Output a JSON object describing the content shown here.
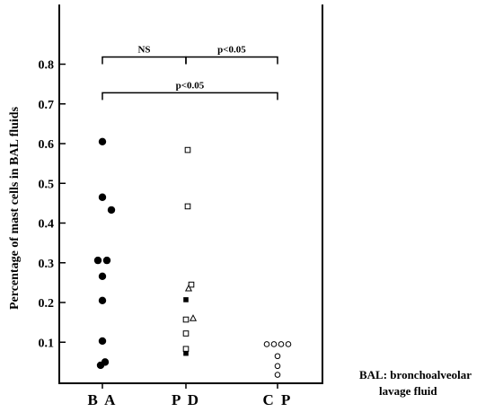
{
  "chart_data": {
    "type": "scatter",
    "ylabel": "Percentage of mast cells in BAL fluids",
    "ylim": [
      0,
      0.9
    ],
    "yticks": [
      "0.1",
      "0.2",
      "0.3",
      "0.4",
      "0.5",
      "0.6",
      "0.7",
      "0.8"
    ],
    "categories": [
      "B A",
      "P D",
      "C P"
    ],
    "series": [
      {
        "category": "B A",
        "marker": "filled-circle",
        "points": [
          {
            "offset": 0,
            "y": 0.605
          },
          {
            "offset": 0,
            "y": 0.465
          },
          {
            "offset": 1,
            "y": 0.433
          },
          {
            "offset": -0.5,
            "y": 0.306
          },
          {
            "offset": 0.5,
            "y": 0.306
          },
          {
            "offset": 0,
            "y": 0.266
          },
          {
            "offset": 0,
            "y": 0.205
          },
          {
            "offset": 0,
            "y": 0.103
          },
          {
            "offset": 0.3,
            "y": 0.05
          },
          {
            "offset": -0.2,
            "y": 0.042
          }
        ]
      },
      {
        "category": "P D",
        "marker": "open-square",
        "points": [
          {
            "offset": 0.2,
            "y": 0.584
          },
          {
            "offset": 0.2,
            "y": 0.442
          },
          {
            "offset": 0.6,
            "y": 0.245
          },
          {
            "offset": 0,
            "y": 0.157
          },
          {
            "offset": 0,
            "y": 0.122
          },
          {
            "offset": 0,
            "y": 0.083
          }
        ]
      },
      {
        "category": "P D",
        "marker": "filled-square",
        "points": [
          {
            "offset": 0,
            "y": 0.207
          },
          {
            "offset": 0,
            "y": 0.072
          }
        ]
      },
      {
        "category": "P D",
        "marker": "open-triangle",
        "points": [
          {
            "offset": 0.3,
            "y": 0.235
          },
          {
            "offset": 0.8,
            "y": 0.16
          }
        ]
      },
      {
        "category": "C P",
        "marker": "open-circle",
        "points": [
          {
            "offset": -1.2,
            "y": 0.095
          },
          {
            "offset": -0.4,
            "y": 0.095
          },
          {
            "offset": 0.4,
            "y": 0.095
          },
          {
            "offset": 1.2,
            "y": 0.095
          },
          {
            "offset": 0,
            "y": 0.065
          },
          {
            "offset": 0,
            "y": 0.04
          },
          {
            "offset": 0,
            "y": 0.018
          }
        ]
      }
    ],
    "comparisons": [
      {
        "from": "B A",
        "to": "P D",
        "level": 0.8,
        "label": "NS"
      },
      {
        "from": "P D",
        "to": "C P",
        "level": 0.8,
        "label": "p<0.05"
      },
      {
        "from": "B A",
        "to": "C P",
        "level": 0.71,
        "label": "p<0.05"
      }
    ],
    "grid": false
  },
  "annotation": {
    "line1": "BAL: bronchoalveolar",
    "line2": "lavage fluid"
  }
}
